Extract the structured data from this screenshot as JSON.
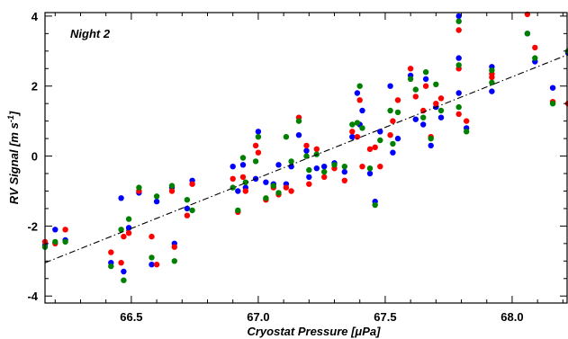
{
  "chart_data": {
    "type": "scatter",
    "title": "",
    "annotation": "Night 2",
    "xlabel": "Cryostat Pressure [μPa]",
    "ylabel_parts": [
      "RV Signal [m s",
      "-1",
      "]"
    ],
    "xlim": [
      66.16,
      68.22
    ],
    "ylim": [
      -4.2,
      4.1
    ],
    "xticks": [
      66.5,
      67.0,
      67.5,
      68.0
    ],
    "xtick_labels": [
      "66.5",
      "67.0",
      "67.5",
      "68.0"
    ],
    "yticks": [
      -4,
      -2,
      0,
      2,
      4
    ],
    "ytick_labels": [
      "-4",
      "-2",
      "0",
      "2",
      "4"
    ],
    "grid": false,
    "fit_line": {
      "style": "dash-dot",
      "points": [
        [
          66.16,
          -3.05
        ],
        [
          68.22,
          2.9
        ]
      ]
    },
    "series": [
      {
        "color": "#0000ff",
        "points": [
          [
            66.16,
            -2.55
          ],
          [
            66.2,
            -2.1
          ],
          [
            66.24,
            -2.4
          ],
          [
            66.42,
            -3.05
          ],
          [
            66.46,
            -1.2
          ],
          [
            66.47,
            -3.3
          ],
          [
            66.49,
            -2.05
          ],
          [
            66.53,
            -1.05
          ],
          [
            66.58,
            -3.1
          ],
          [
            66.6,
            -1.3
          ],
          [
            66.66,
            -0.9
          ],
          [
            66.67,
            -2.5
          ],
          [
            66.72,
            -1.5
          ],
          [
            66.74,
            -0.7
          ],
          [
            66.9,
            -0.3
          ],
          [
            66.92,
            -1.0
          ],
          [
            66.94,
            -0.25
          ],
          [
            66.95,
            -0.9
          ],
          [
            66.99,
            -0.65
          ],
          [
            67.0,
            0.7
          ],
          [
            67.03,
            -0.75
          ],
          [
            67.06,
            -0.8
          ],
          [
            67.08,
            -0.25
          ],
          [
            67.11,
            -0.8
          ],
          [
            67.13,
            -0.3
          ],
          [
            67.16,
            0.6
          ],
          [
            67.19,
            0.15
          ],
          [
            67.2,
            -0.6
          ],
          [
            67.23,
            -0.35
          ],
          [
            67.26,
            -0.3
          ],
          [
            67.3,
            -0.2
          ],
          [
            67.34,
            -0.45
          ],
          [
            67.37,
            0.55
          ],
          [
            67.39,
            1.8
          ],
          [
            67.4,
            0.9
          ],
          [
            67.41,
            1.3
          ],
          [
            67.44,
            -0.5
          ],
          [
            67.46,
            -1.3
          ],
          [
            67.48,
            0.7
          ],
          [
            67.52,
            2.0
          ],
          [
            67.53,
            0.1
          ],
          [
            67.55,
            0.5
          ],
          [
            67.6,
            2.3
          ],
          [
            67.62,
            1.05
          ],
          [
            67.65,
            0.9
          ],
          [
            67.66,
            2.2
          ],
          [
            67.68,
            0.3
          ],
          [
            67.7,
            1.4
          ],
          [
            67.72,
            1.1
          ],
          [
            67.79,
            4.0
          ],
          [
            67.79,
            1.8
          ],
          [
            67.79,
            2.8
          ],
          [
            67.82,
            0.8
          ],
          [
            67.92,
            1.85
          ],
          [
            67.92,
            2.55
          ],
          [
            68.06,
            3.5
          ],
          [
            68.09,
            2.7
          ],
          [
            68.16,
            1.95
          ],
          [
            68.22,
            2.95
          ]
        ]
      },
      {
        "color": "#ff0000",
        "points": [
          [
            66.16,
            -2.45
          ],
          [
            66.2,
            -2.5
          ],
          [
            66.24,
            -2.1
          ],
          [
            66.42,
            -2.75
          ],
          [
            66.46,
            -3.05
          ],
          [
            66.47,
            -2.3
          ],
          [
            66.49,
            -2.2
          ],
          [
            66.53,
            -1.0
          ],
          [
            66.58,
            -2.3
          ],
          [
            66.6,
            -3.1
          ],
          [
            66.66,
            -1.0
          ],
          [
            66.67,
            -2.6
          ],
          [
            66.72,
            -1.7
          ],
          [
            66.74,
            -0.8
          ],
          [
            66.9,
            -0.65
          ],
          [
            66.92,
            -1.6
          ],
          [
            66.94,
            -0.6
          ],
          [
            66.95,
            -1.0
          ],
          [
            66.99,
            0.3
          ],
          [
            67.0,
            0.1
          ],
          [
            67.03,
            -1.25
          ],
          [
            67.06,
            -0.9
          ],
          [
            67.08,
            -1.1
          ],
          [
            67.11,
            -0.9
          ],
          [
            67.13,
            -1.0
          ],
          [
            67.16,
            1.1
          ],
          [
            67.19,
            0.3
          ],
          [
            67.2,
            -0.8
          ],
          [
            67.23,
            0.2
          ],
          [
            67.26,
            -0.6
          ],
          [
            67.3,
            -0.35
          ],
          [
            67.34,
            -0.7
          ],
          [
            67.37,
            0.7
          ],
          [
            67.39,
            0.55
          ],
          [
            67.4,
            1.6
          ],
          [
            67.41,
            -0.3
          ],
          [
            67.44,
            0.2
          ],
          [
            67.46,
            0.25
          ],
          [
            67.48,
            -0.3
          ],
          [
            67.52,
            0.6
          ],
          [
            67.53,
            1.0
          ],
          [
            67.55,
            1.6
          ],
          [
            67.6,
            2.5
          ],
          [
            67.62,
            1.7
          ],
          [
            67.65,
            1.3
          ],
          [
            67.66,
            2.0
          ],
          [
            67.68,
            0.55
          ],
          [
            67.7,
            1.5
          ],
          [
            67.72,
            1.65
          ],
          [
            67.79,
            3.6
          ],
          [
            67.79,
            2.5
          ],
          [
            67.79,
            1.2
          ],
          [
            67.82,
            1.0
          ],
          [
            67.92,
            2.35
          ],
          [
            67.92,
            2.25
          ],
          [
            68.06,
            4.05
          ],
          [
            68.09,
            3.1
          ],
          [
            68.16,
            1.55
          ],
          [
            68.22,
            1.5
          ]
        ]
      },
      {
        "color": "#008000",
        "points": [
          [
            66.16,
            -2.6
          ],
          [
            66.2,
            -2.45
          ],
          [
            66.24,
            -2.45
          ],
          [
            66.42,
            -3.15
          ],
          [
            66.46,
            -2.1
          ],
          [
            66.47,
            -3.55
          ],
          [
            66.49,
            -1.8
          ],
          [
            66.53,
            -0.9
          ],
          [
            66.58,
            -2.9
          ],
          [
            66.6,
            -1.15
          ],
          [
            66.66,
            -0.85
          ],
          [
            66.67,
            -3.0
          ],
          [
            66.72,
            -1.25
          ],
          [
            66.74,
            -1.55
          ],
          [
            66.9,
            -0.9
          ],
          [
            66.92,
            -1.55
          ],
          [
            66.94,
            -0.05
          ],
          [
            66.95,
            -0.75
          ],
          [
            66.99,
            -0.15
          ],
          [
            67.0,
            0.55
          ],
          [
            67.03,
            -1.2
          ],
          [
            67.06,
            -0.85
          ],
          [
            67.08,
            -1.05
          ],
          [
            67.11,
            0.55
          ],
          [
            67.13,
            -0.15
          ],
          [
            67.16,
            1.0
          ],
          [
            67.19,
            0.0
          ],
          [
            67.2,
            -0.4
          ],
          [
            67.23,
            0.05
          ],
          [
            67.26,
            -0.45
          ],
          [
            67.3,
            -0.25
          ],
          [
            67.34,
            -0.3
          ],
          [
            67.37,
            0.9
          ],
          [
            67.39,
            0.95
          ],
          [
            67.4,
            2.0
          ],
          [
            67.41,
            0.8
          ],
          [
            67.44,
            -0.35
          ],
          [
            67.46,
            -1.4
          ],
          [
            67.48,
            0.45
          ],
          [
            67.52,
            1.3
          ],
          [
            67.53,
            0.35
          ],
          [
            67.55,
            1.25
          ],
          [
            67.6,
            2.2
          ],
          [
            67.62,
            1.9
          ],
          [
            67.65,
            1.1
          ],
          [
            67.66,
            2.4
          ],
          [
            67.68,
            0.5
          ],
          [
            67.7,
            2.05
          ],
          [
            67.72,
            1.3
          ],
          [
            67.79,
            3.85
          ],
          [
            67.79,
            2.6
          ],
          [
            67.79,
            1.4
          ],
          [
            67.82,
            0.7
          ],
          [
            67.92,
            2.1
          ],
          [
            67.92,
            2.45
          ],
          [
            68.06,
            3.5
          ],
          [
            68.09,
            2.8
          ],
          [
            68.16,
            1.5
          ],
          [
            68.22,
            3.0
          ]
        ]
      }
    ]
  }
}
